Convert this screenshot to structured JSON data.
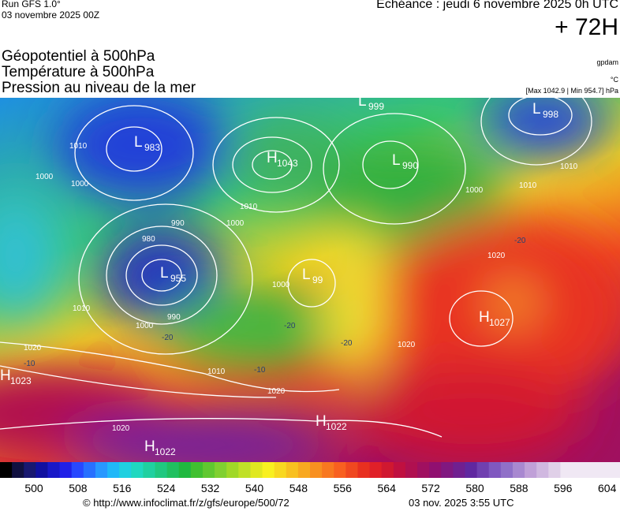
{
  "header": {
    "run": "Run GFS 1.0°",
    "run_date": "03 novembre 2025 00Z",
    "echeance": "Echéance : jeudi 6 novembre 2025 0h UTC",
    "lead": "+ 72H",
    "fields": [
      "Géopotentiel à 500hPa",
      "Température à 500hPa",
      "Pression au niveau de la mer"
    ],
    "units": [
      "gpdam",
      "°C",
      "[Max 1042.9 | Min 954.7] hPa"
    ]
  },
  "map": {
    "centers": [
      {
        "letter": "L",
        "value": 983
      },
      {
        "letter": "H",
        "value": 1043
      },
      {
        "letter": "L",
        "value": 999
      },
      {
        "letter": "L",
        "value": 998
      },
      {
        "letter": "L",
        "value": 990
      },
      {
        "letter": "L",
        "value": 955
      },
      {
        "letter": "L",
        "value": 99
      },
      {
        "letter": "H",
        "value": 1027
      },
      {
        "letter": "H",
        "value": 1023
      },
      {
        "letter": "H",
        "value": 1022
      },
      {
        "letter": "H",
        "value": 1022
      }
    ],
    "isobar_labels": [
      1010,
      1000,
      990,
      980,
      990,
      1000,
      1010,
      1020,
      1010,
      1000,
      1010,
      1000,
      1020,
      1020,
      1010,
      1010,
      1000,
      1020,
      1020,
      1000
    ],
    "temperature_labels": [
      -20,
      -20,
      -20,
      -10,
      -10,
      -20
    ]
  },
  "colorbar": {
    "labels": [
      500,
      508,
      516,
      524,
      532,
      540,
      548,
      556,
      564,
      572,
      580,
      588,
      596,
      604
    ]
  },
  "footer": {
    "url": "© http://www.infoclimat.fr/z/gfs/europe/500/72",
    "date": "03 nov. 2025  3:55 UTC"
  }
}
